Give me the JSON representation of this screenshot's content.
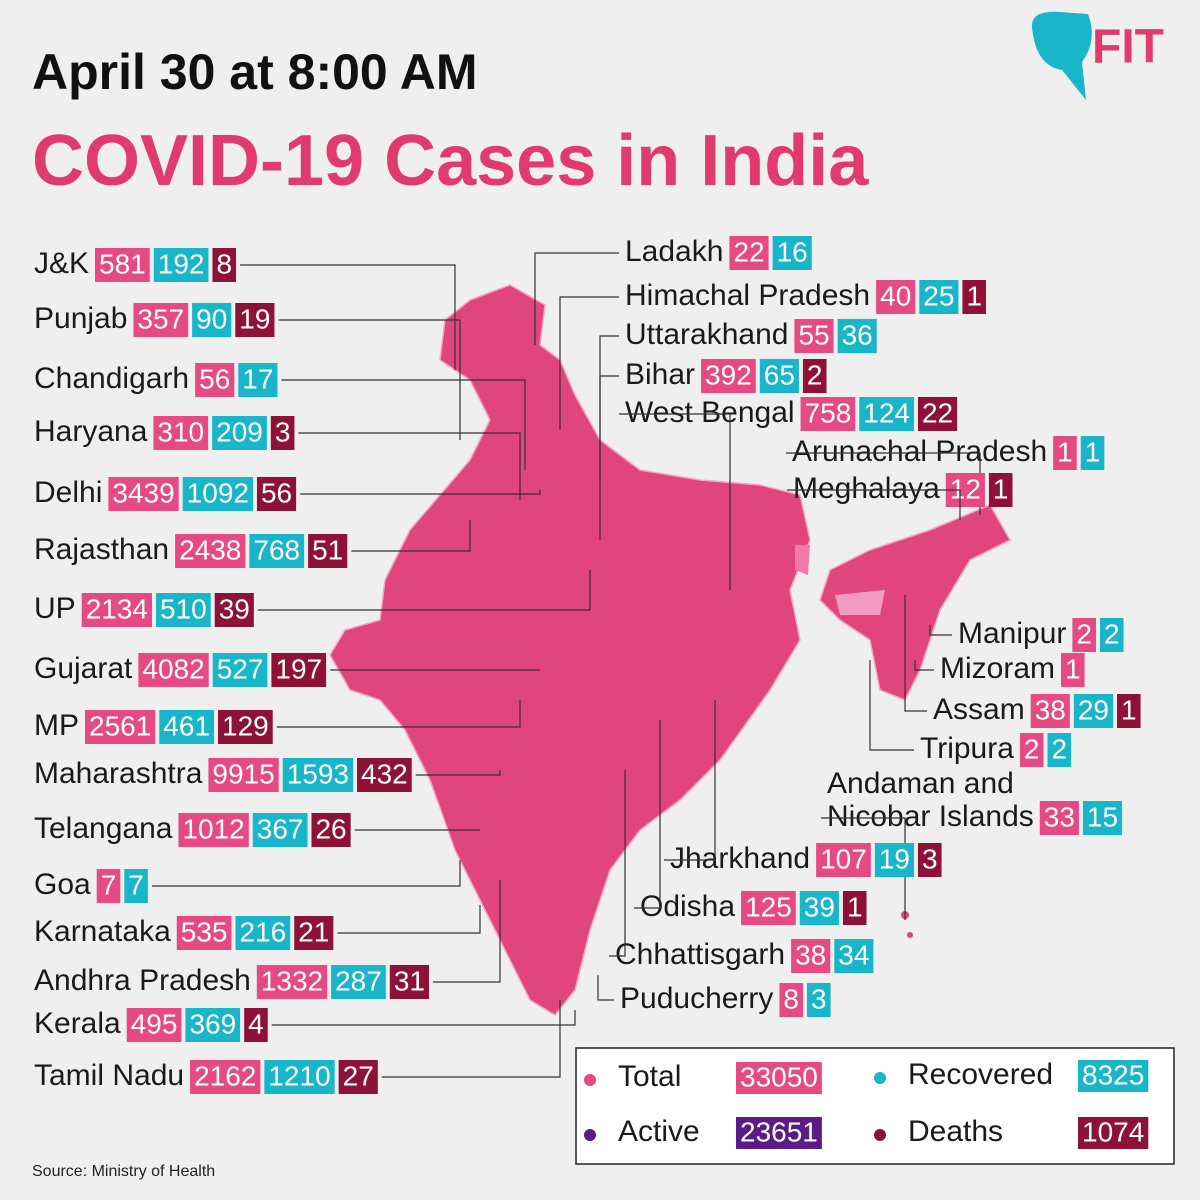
{
  "header": {
    "date": "April 30 at 8:00 AM",
    "title": "COVID-19 Cases in India",
    "logo": "FIT"
  },
  "states": [
    {
      "name": "J&K",
      "total": 581,
      "recovered": 192,
      "deaths": 8
    },
    {
      "name": "Punjab",
      "total": 357,
      "recovered": 90,
      "deaths": 19
    },
    {
      "name": "Chandigarh",
      "total": 56,
      "recovered": 17
    },
    {
      "name": "Haryana",
      "total": 310,
      "recovered": 209,
      "deaths": 3
    },
    {
      "name": "Delhi",
      "total": 3439,
      "recovered": 1092,
      "deaths": 56
    },
    {
      "name": "Rajasthan",
      "total": 2438,
      "recovered": 768,
      "deaths": 51
    },
    {
      "name": "UP",
      "total": 2134,
      "recovered": 510,
      "deaths": 39
    },
    {
      "name": "Gujarat",
      "total": 4082,
      "recovered": 527,
      "deaths": 197
    },
    {
      "name": "MP",
      "total": 2561,
      "recovered": 461,
      "deaths": 129
    },
    {
      "name": "Maharashtra",
      "total": 9915,
      "recovered": 1593,
      "deaths": 432
    },
    {
      "name": "Telangana",
      "total": 1012,
      "recovered": 367,
      "deaths": 26
    },
    {
      "name": "Goa",
      "total": 7,
      "recovered": 7
    },
    {
      "name": "Karnataka",
      "total": 535,
      "recovered": 216,
      "deaths": 21
    },
    {
      "name": "Andhra Pradesh",
      "total": 1332,
      "recovered": 287,
      "deaths": 31
    },
    {
      "name": "Kerala",
      "total": 495,
      "recovered": 369,
      "deaths": 4
    },
    {
      "name": "Tamil Nadu",
      "total": 2162,
      "recovered": 1210,
      "deaths": 27
    },
    {
      "name": "Ladakh",
      "total": 22,
      "recovered": 16
    },
    {
      "name": "Himachal Pradesh",
      "total": 40,
      "recovered": 25,
      "deaths": 1
    },
    {
      "name": "Uttarakhand",
      "total": 55,
      "recovered": 36
    },
    {
      "name": "Bihar",
      "total": 392,
      "recovered": 65,
      "deaths": 2
    },
    {
      "name": "West Bengal",
      "total": 758,
      "recovered": 124,
      "deaths": 22
    },
    {
      "name": "Arunachal Pradesh",
      "total": 1,
      "recovered": 1
    },
    {
      "name": "Meghalaya",
      "total": 12,
      "deaths": 1
    },
    {
      "name": "Manipur",
      "total": 2,
      "recovered": 2
    },
    {
      "name": "Mizoram",
      "total": 1
    },
    {
      "name": "Assam",
      "total": 38,
      "recovered": 29,
      "deaths": 1
    },
    {
      "name": "Tripura",
      "total": 2,
      "recovered": 2
    },
    {
      "name": [
        "Andaman and",
        "Nicobar Islands"
      ],
      "total": 33,
      "recovered": 15
    },
    {
      "name": "Jharkhand",
      "total": 107,
      "recovered": 19,
      "deaths": 3
    },
    {
      "name": "Odisha",
      "total": 125,
      "recovered": 39,
      "deaths": 1
    },
    {
      "name": "Chhattisgarh",
      "total": 38,
      "recovered": 34
    },
    {
      "name": "Puducherry",
      "total": 8,
      "recovered": 3
    }
  ],
  "legend": [
    {
      "label": "Total",
      "value": 33050
    },
    {
      "label": "Recovered",
      "value": 8325
    },
    {
      "label": "Active",
      "value": 23651
    },
    {
      "label": "Deaths",
      "value": 1074
    }
  ],
  "source": "Source: Ministry of Health"
}
